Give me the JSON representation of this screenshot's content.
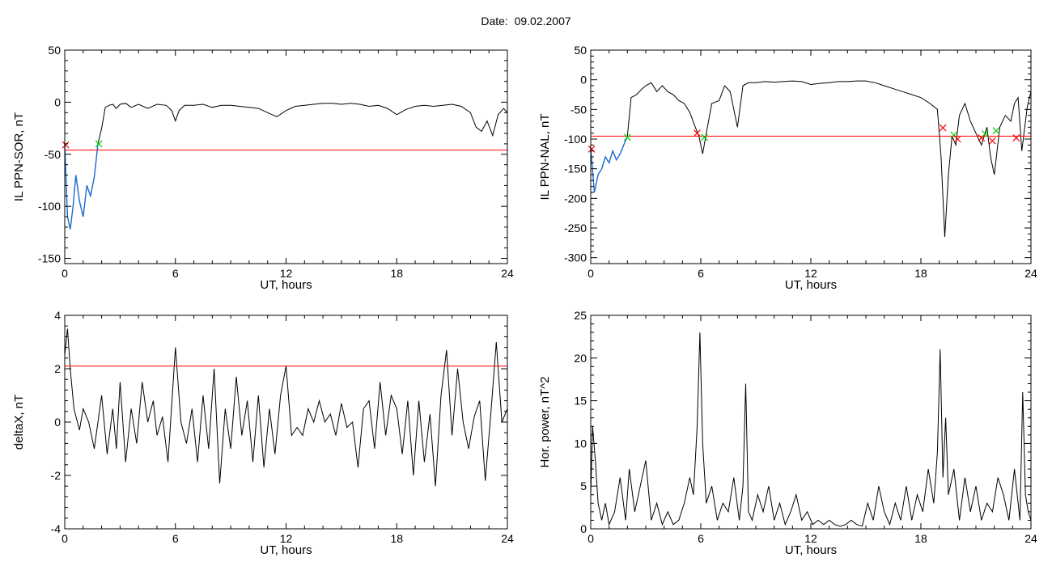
{
  "title": "Date:  09.02.2007",
  "chart_data": [
    {
      "type": "line",
      "xlabel": "UT, hours",
      "ylabel": "IL PPN-SOR, nT",
      "xlim": [
        0,
        24
      ],
      "ylim": [
        -155,
        50
      ],
      "xticks": [
        0,
        6,
        12,
        18,
        24
      ],
      "yticks": [
        -150,
        -100,
        -50,
        0,
        50
      ],
      "threshold": -46,
      "x": [
        0.0,
        0.15,
        0.3,
        0.45,
        0.6,
        0.8,
        1.0,
        1.2,
        1.4,
        1.6,
        1.8,
        2.0,
        2.2,
        2.4,
        2.6,
        2.8,
        3.0,
        3.3,
        3.6,
        4.0,
        4.5,
        5.0,
        5.5,
        5.8,
        6.0,
        6.2,
        6.5,
        7.0,
        7.5,
        8.0,
        8.5,
        9.0,
        9.5,
        10.0,
        10.5,
        11.0,
        11.5,
        12.0,
        12.5,
        13.0,
        13.5,
        14.0,
        14.5,
        15.0,
        15.5,
        16.0,
        16.5,
        17.0,
        17.5,
        18.0,
        18.5,
        19.0,
        19.5,
        20.0,
        20.5,
        21.0,
        21.5,
        22.0,
        22.3,
        22.6,
        22.9,
        23.2,
        23.5,
        23.8,
        24.0
      ],
      "y": [
        -40,
        -110,
        -122,
        -100,
        -70,
        -95,
        -110,
        -80,
        -90,
        -72,
        -40,
        -25,
        -5,
        -3,
        -2,
        -6,
        -2,
        -1,
        -5,
        -2,
        -6,
        -2,
        -3,
        -8,
        -18,
        -8,
        -3,
        -3,
        -2,
        -5,
        -3,
        -3,
        -4,
        -5,
        -6,
        -10,
        -14,
        -8,
        -4,
        -3,
        -2,
        -1,
        -1,
        -2,
        -1,
        -2,
        -4,
        -3,
        -6,
        -12,
        -7,
        -4,
        -3,
        -4,
        -3,
        -2,
        -4,
        -10,
        -24,
        -28,
        -18,
        -32,
        -12,
        -6,
        -10
      ],
      "low_segment_x": [
        0.0,
        0.15,
        0.3,
        0.45,
        0.6,
        0.8,
        1.0,
        1.2,
        1.4,
        1.6,
        1.8
      ],
      "low_segment_y": [
        -40,
        -110,
        -122,
        -100,
        -70,
        -95,
        -110,
        -80,
        -90,
        -72,
        -40
      ],
      "markers": [
        {
          "x": 0.05,
          "y": -41,
          "color": "#ff0000"
        },
        {
          "x": 1.85,
          "y": -40,
          "color": "#00cc00"
        }
      ]
    },
    {
      "type": "line",
      "xlabel": "UT, hours",
      "ylabel": "IL PPN-NAL, nT",
      "xlim": [
        0,
        24
      ],
      "ylim": [
        -310,
        50
      ],
      "xticks": [
        0,
        6,
        12,
        18,
        24
      ],
      "yticks": [
        -300,
        -250,
        -200,
        -150,
        -100,
        -50,
        0,
        50
      ],
      "threshold": -95,
      "x": [
        0.0,
        0.2,
        0.4,
        0.6,
        0.8,
        1.0,
        1.2,
        1.4,
        1.6,
        1.8,
        2.0,
        2.2,
        2.5,
        2.8,
        3.0,
        3.3,
        3.6,
        3.9,
        4.2,
        4.5,
        4.8,
        5.1,
        5.4,
        5.7,
        5.9,
        6.1,
        6.3,
        6.6,
        7.0,
        7.3,
        7.6,
        7.8,
        8.0,
        8.3,
        8.6,
        9.0,
        9.5,
        10.0,
        10.5,
        11.0,
        11.5,
        12.0,
        12.5,
        13.0,
        13.5,
        14.0,
        14.5,
        15.0,
        15.5,
        16.0,
        16.5,
        17.0,
        17.5,
        18.0,
        18.5,
        18.9,
        19.1,
        19.3,
        19.5,
        19.7,
        19.9,
        20.1,
        20.4,
        20.7,
        21.0,
        21.3,
        21.6,
        21.8,
        22.0,
        22.3,
        22.6,
        22.9,
        23.1,
        23.3,
        23.5,
        23.8,
        24.0
      ],
      "y": [
        -115,
        -190,
        -160,
        -150,
        -130,
        -140,
        -120,
        -135,
        -125,
        -110,
        -95,
        -30,
        -25,
        -15,
        -10,
        -5,
        -20,
        -10,
        -20,
        -25,
        -35,
        -40,
        -55,
        -80,
        -95,
        -125,
        -90,
        -40,
        -35,
        -10,
        -20,
        -50,
        -80,
        -10,
        -5,
        -5,
        -3,
        -4,
        -3,
        -2,
        -3,
        -8,
        -6,
        -5,
        -3,
        -3,
        -2,
        -2,
        -5,
        -10,
        -15,
        -20,
        -25,
        -30,
        -40,
        -50,
        -130,
        -265,
        -160,
        -95,
        -110,
        -60,
        -40,
        -70,
        -90,
        -110,
        -80,
        -130,
        -160,
        -80,
        -60,
        -70,
        -40,
        -30,
        -120,
        -45,
        -20
      ],
      "low_segment_x": [
        0.0,
        0.2,
        0.4,
        0.6,
        0.8,
        1.0,
        1.2,
        1.4,
        1.6,
        1.8,
        2.0
      ],
      "low_segment_y": [
        -115,
        -190,
        -160,
        -150,
        -130,
        -140,
        -120,
        -135,
        -125,
        -110,
        -95
      ],
      "markers": [
        {
          "x": 0.05,
          "y": -117,
          "color": "#ff0000"
        },
        {
          "x": 2.0,
          "y": -97,
          "color": "#00cc00"
        },
        {
          "x": 5.8,
          "y": -90,
          "color": "#ff0000"
        },
        {
          "x": 6.2,
          "y": -97,
          "color": "#00cc00"
        },
        {
          "x": 19.2,
          "y": -81,
          "color": "#ff0000"
        },
        {
          "x": 19.8,
          "y": -93,
          "color": "#00cc00"
        },
        {
          "x": 20.0,
          "y": -100,
          "color": "#ff0000"
        },
        {
          "x": 21.3,
          "y": -98,
          "color": "#ff0000"
        },
        {
          "x": 21.5,
          "y": -91,
          "color": "#00cc00"
        },
        {
          "x": 21.9,
          "y": -103,
          "color": "#ff0000"
        },
        {
          "x": 22.1,
          "y": -86,
          "color": "#00cc00"
        },
        {
          "x": 23.2,
          "y": -98,
          "color": "#ff0000"
        }
      ]
    },
    {
      "type": "line",
      "xlabel": "UT, hours",
      "ylabel": "deltaX, nT",
      "xlim": [
        0,
        24
      ],
      "ylim": [
        -4,
        4
      ],
      "xticks": [
        0,
        6,
        12,
        18,
        24
      ],
      "yticks": [
        -4,
        -2,
        0,
        2,
        4
      ],
      "threshold": 2.1,
      "x": [
        0.0,
        0.15,
        0.3,
        0.5,
        0.8,
        1.0,
        1.3,
        1.6,
        2.0,
        2.3,
        2.6,
        2.8,
        3.0,
        3.3,
        3.6,
        3.9,
        4.2,
        4.5,
        4.8,
        5.0,
        5.3,
        5.6,
        6.0,
        6.3,
        6.6,
        6.9,
        7.2,
        7.5,
        7.8,
        8.1,
        8.4,
        8.7,
        9.0,
        9.3,
        9.6,
        9.9,
        10.2,
        10.5,
        10.8,
        11.1,
        11.4,
        11.7,
        12.0,
        12.3,
        12.6,
        12.9,
        13.2,
        13.5,
        13.8,
        14.1,
        14.4,
        14.7,
        15.0,
        15.3,
        15.6,
        15.9,
        16.2,
        16.5,
        16.8,
        17.1,
        17.4,
        17.7,
        18.0,
        18.3,
        18.6,
        18.9,
        19.2,
        19.5,
        19.8,
        20.1,
        20.4,
        20.7,
        21.0,
        21.3,
        21.6,
        21.9,
        22.2,
        22.5,
        22.8,
        23.1,
        23.4,
        23.7,
        24.0
      ],
      "y": [
        2.5,
        3.5,
        2.0,
        0.5,
        -0.3,
        0.5,
        0.0,
        -1.0,
        1.0,
        -1.2,
        0.5,
        -1.0,
        1.5,
        -1.5,
        0.5,
        -0.8,
        1.5,
        0.0,
        0.8,
        -0.5,
        0.2,
        -1.5,
        2.8,
        0.0,
        -0.8,
        0.5,
        -1.5,
        1.0,
        -1.0,
        2.0,
        -2.3,
        0.5,
        -1.0,
        1.7,
        -0.5,
        0.8,
        -1.5,
        1.0,
        -1.7,
        0.5,
        -1.2,
        1.0,
        2.1,
        -0.5,
        -0.2,
        -0.5,
        0.5,
        0.0,
        0.8,
        0.0,
        0.3,
        -0.5,
        0.7,
        -0.2,
        0.0,
        -1.7,
        0.5,
        0.8,
        -1.0,
        1.5,
        -0.5,
        1.0,
        0.5,
        -1.2,
        0.8,
        -2.0,
        0.8,
        -1.5,
        0.3,
        -2.4,
        1.0,
        2.7,
        -0.5,
        2.0,
        0.0,
        -1.0,
        0.2,
        0.8,
        -2.2,
        0.3,
        3.0,
        0.0,
        0.5
      ]
    },
    {
      "type": "line",
      "xlabel": "UT, hours",
      "ylabel": "Hor. power, nT^2",
      "xlim": [
        0,
        24
      ],
      "ylim": [
        0,
        25
      ],
      "xticks": [
        0,
        6,
        12,
        18,
        24
      ],
      "yticks": [
        0,
        5,
        10,
        15,
        20,
        25
      ],
      "threshold": 25,
      "x": [
        0.0,
        0.1,
        0.25,
        0.4,
        0.6,
        0.8,
        1.0,
        1.3,
        1.6,
        1.9,
        2.1,
        2.4,
        2.7,
        3.0,
        3.3,
        3.6,
        3.9,
        4.2,
        4.5,
        4.8,
        5.1,
        5.4,
        5.6,
        5.8,
        5.95,
        6.1,
        6.3,
        6.6,
        6.9,
        7.2,
        7.5,
        7.8,
        8.1,
        8.3,
        8.45,
        8.6,
        8.8,
        9.1,
        9.4,
        9.7,
        10.0,
        10.3,
        10.6,
        10.9,
        11.2,
        11.5,
        11.8,
        12.1,
        12.4,
        12.7,
        13.0,
        13.3,
        13.6,
        13.9,
        14.2,
        14.5,
        14.8,
        15.1,
        15.4,
        15.7,
        16.0,
        16.3,
        16.6,
        16.9,
        17.2,
        17.5,
        17.8,
        18.1,
        18.4,
        18.7,
        18.9,
        19.05,
        19.2,
        19.35,
        19.5,
        19.8,
        20.1,
        20.4,
        20.7,
        21.0,
        21.3,
        21.6,
        21.9,
        22.2,
        22.5,
        22.8,
        23.1,
        23.4,
        23.55,
        23.7,
        23.85,
        24.0
      ],
      "y": [
        4,
        12,
        8,
        3,
        1,
        3,
        0.5,
        2,
        6,
        1,
        7,
        2,
        5,
        8,
        1,
        3,
        0.5,
        2,
        0.5,
        1,
        3,
        6,
        4,
        12,
        23,
        10,
        3,
        5,
        1,
        3,
        2,
        6,
        1,
        5,
        17,
        2,
        1,
        4,
        2,
        5,
        1,
        3,
        0.5,
        2,
        4,
        1,
        2,
        0.5,
        1,
        0.5,
        1,
        0.5,
        0.3,
        0.5,
        1,
        0.5,
        0.3,
        3,
        1,
        5,
        2,
        0.5,
        3,
        1,
        5,
        1,
        4,
        2,
        7,
        3,
        9,
        21,
        6,
        13,
        4,
        7,
        1,
        6,
        2,
        5,
        1,
        3,
        2,
        6,
        4,
        1,
        7,
        1,
        16,
        4,
        2,
        1
      ]
    }
  ]
}
